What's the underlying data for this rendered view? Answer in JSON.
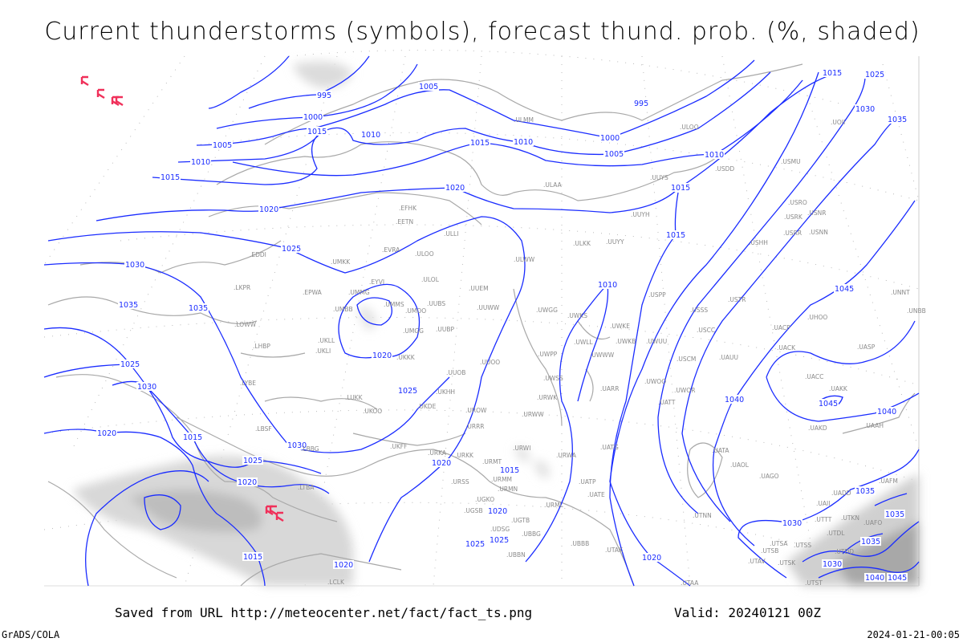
{
  "title": "Current thunderstorms (symbols), forecast thund. prob. (%, shaded)",
  "footer": {
    "saved_from": "Saved from URL http://meteocenter.net/fact/fact_ts.png",
    "valid": "Valid: 20240121 00Z",
    "software": "GrADS/COLA",
    "timestamp": "2024-01-21-00:05"
  },
  "colors": {
    "isobar": "#1a2cff",
    "coastline": "#a8a8a8",
    "storm_symbol": "#f0305a",
    "probability_shading": "#c8c8c8"
  },
  "legend_symbols": {
    "thunderstorm_icon": "thunderstorm-symbol"
  },
  "isobar_labels": [
    "995",
    "1005",
    "995",
    "1000",
    "1015",
    "1010",
    "1005",
    "1010",
    "1015",
    "1000",
    "1005",
    "1010",
    "1015",
    "1010",
    "1015",
    "1020",
    "1020",
    "1025",
    "1030",
    "1035",
    "1035",
    "1015",
    "1010",
    "1020",
    "1025",
    "1025",
    "1030",
    "1020",
    "1015",
    "1030",
    "1025",
    "1020",
    "1015",
    "1020",
    "1020",
    "1015",
    "1020",
    "1025",
    "1025",
    "1020",
    "1030",
    "1035",
    "1035",
    "1035",
    "1030",
    "1040",
    "1045",
    "1040",
    "1045",
    "1040",
    "1045",
    "1035",
    "1030",
    "1025",
    "1015"
  ],
  "stations": [
    "EFHK",
    "EETN",
    "ULLI",
    "EVRA",
    "ULOO",
    "EDDI",
    "UMKK",
    "ULOL",
    "UUEM",
    "LKPR",
    "EPWA",
    "EYVI",
    "UMMG",
    "UMMS",
    "UMOO",
    "UUBS",
    "UUWW",
    "UMBB",
    "LOWW",
    "UMGG",
    "UUBP",
    "UKLL",
    "LHBP",
    "UKLI",
    "UKKK",
    "UUOO",
    "UUOB",
    "LYBE",
    "ULMM",
    "ULOO",
    "UOII",
    "USMU",
    "USDD",
    "ULAA",
    "UUYS",
    "USRO",
    "USRK",
    "USNR",
    "UUYH",
    "USRR",
    "USNN",
    "USHH",
    "ULKK",
    "UUYY",
    "ULWW",
    "USPP",
    "USTR",
    "UNNT",
    "UNBB",
    "UWGG",
    "UWKS",
    "USSS",
    "UHOO",
    "UACP",
    "UWKE",
    "USCC",
    "UWLL",
    "UWKB",
    "UWUU",
    "UACK",
    "UASP",
    "UWPP",
    "UWWW",
    "USCM",
    "UAUU",
    "UACC",
    "UAKK",
    "UAKD",
    "UAAH",
    "UWOO",
    "UWOR",
    "UATT",
    "UATA",
    "UAOL",
    "UAGO",
    "UAFM",
    "UADD",
    "UAII",
    "UTNN",
    "UTTT",
    "UTKN",
    "UAFO",
    "UTDL",
    "UTSA",
    "UTSS",
    "UTSB",
    "UTAV",
    "UTSK",
    "UTDD",
    "UTST",
    "UTAA",
    "UWSS",
    "UARR",
    "LUKK",
    "UKOO",
    "UKHH",
    "UKDE",
    "UROW",
    "URWK",
    "URWW",
    "URRR",
    "UKFF",
    "URKA",
    "URKK",
    "URWI",
    "URWA",
    "UATG",
    "URMT",
    "URMM",
    "URSS",
    "UATP",
    "UATE",
    "URMN",
    "UGKO",
    "UGSB",
    "URML",
    "UGTB",
    "UDSG",
    "UBBG",
    "UBBB",
    "UTAK",
    "UBBN",
    "LCLK",
    "LBSF",
    "LBBG",
    "LTBA"
  ]
}
